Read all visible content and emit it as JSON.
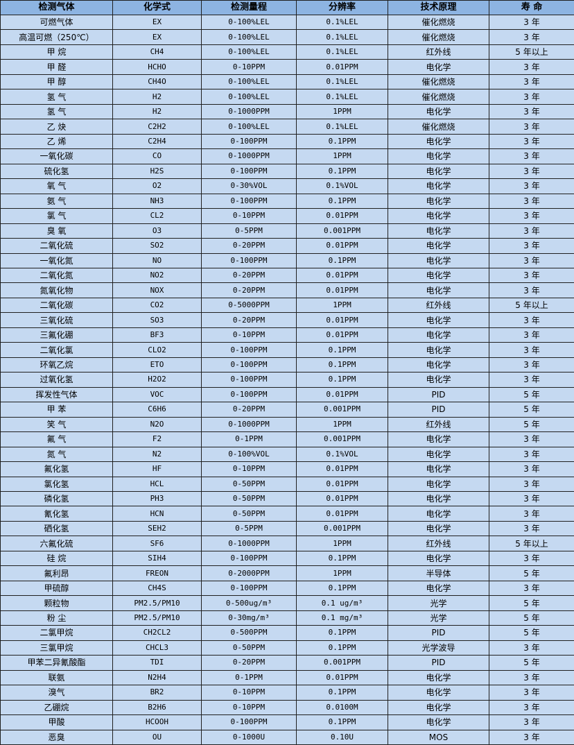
{
  "header": [
    "检测气体",
    "化学式",
    "检测量程",
    "分辨率",
    "技术原理",
    "寿 命"
  ],
  "colors": {
    "header_bg": "#8db4e2",
    "row_bg": "#c5d9f1",
    "border": "#1f1f1f"
  },
  "rows": [
    [
      "可燃气体",
      "EX",
      "0-100%LEL",
      "0.1%LEL",
      "催化燃烧",
      "3 年"
    ],
    [
      "高温可燃（250℃）",
      "EX",
      "0-100%LEL",
      "0.1%LEL",
      "催化燃烧",
      "3 年"
    ],
    [
      "甲 烷",
      "CH4",
      "0-100%LEL",
      "0.1%LEL",
      "红外线",
      "5 年以上"
    ],
    [
      "甲 醛",
      "HCHO",
      "0-10PPM",
      "0.01PPM",
      "电化学",
      "3 年"
    ],
    [
      "甲 醇",
      "CH4O",
      "0-100%LEL",
      "0.1%LEL",
      "催化燃烧",
      "3 年"
    ],
    [
      "氢 气",
      "H2",
      "0-100%LEL",
      "0.1%LEL",
      "催化燃烧",
      "3 年"
    ],
    [
      "氢 气",
      "H2",
      "0-1000PPM",
      "1PPM",
      "电化学",
      "3 年"
    ],
    [
      "乙 炔",
      "C2H2",
      "0-100%LEL",
      "0.1%LEL",
      "催化燃烧",
      "3 年"
    ],
    [
      "乙 烯",
      "C2H4",
      "0-100PPM",
      "0.1PPM",
      "电化学",
      "3 年"
    ],
    [
      "一氧化碳",
      "CO",
      "0-1000PPM",
      "1PPM",
      "电化学",
      "3 年"
    ],
    [
      "硫化氢",
      "H2S",
      "0-100PPM",
      "0.1PPM",
      "电化学",
      "3 年"
    ],
    [
      "氧 气",
      "O2",
      "0-30%VOL",
      "0.1%VOL",
      "电化学",
      "3 年"
    ],
    [
      "氨 气",
      "NH3",
      "0-100PPM",
      "0.1PPM",
      "电化学",
      "3 年"
    ],
    [
      "氯 气",
      "CL2",
      "0-10PPM",
      "0.01PPM",
      "电化学",
      "3 年"
    ],
    [
      "臭 氧",
      "O3",
      "0-5PPM",
      "0.001PPM",
      "电化学",
      "3 年"
    ],
    [
      "二氧化硫",
      "SO2",
      "0-20PPM",
      "0.01PPM",
      "电化学",
      "3 年"
    ],
    [
      "一氧化氮",
      "NO",
      "0-100PPM",
      "0.1PPM",
      "电化学",
      "3 年"
    ],
    [
      "二氧化氮",
      "NO2",
      "0-20PPM",
      "0.01PPM",
      "电化学",
      "3 年"
    ],
    [
      "氮氧化物",
      "NOX",
      "0-20PPM",
      "0.01PPM",
      "电化学",
      "3 年"
    ],
    [
      "二氧化碳",
      "CO2",
      "0-5000PPM",
      "1PPM",
      "红外线",
      "5 年以上"
    ],
    [
      "三氧化硫",
      "SO3",
      "0-20PPM",
      "0.01PPM",
      "电化学",
      "3 年"
    ],
    [
      "三氟化硼",
      "BF3",
      "0-10PPM",
      "0.01PPM",
      "电化学",
      "3 年"
    ],
    [
      "二氧化氯",
      "CLO2",
      "0-100PPM",
      "0.1PPM",
      "电化学",
      "3 年"
    ],
    [
      "环氧乙烷",
      "ETO",
      "0-100PPM",
      "0.1PPM",
      "电化学",
      "3 年"
    ],
    [
      "过氧化氢",
      "H2O2",
      "0-100PPM",
      "0.1PPM",
      "电化学",
      "3 年"
    ],
    [
      "挥发性气体",
      "VOC",
      "0-100PPM",
      "0.01PPM",
      "PID",
      "5 年"
    ],
    [
      "甲 苯",
      "C6H6",
      "0-20PPM",
      "0.001PPM",
      "PID",
      "5 年"
    ],
    [
      "笑 气",
      "N2O",
      "0-1000PPM",
      "1PPM",
      "红外线",
      "5 年"
    ],
    [
      "氟 气",
      "F2",
      "0-1PPM",
      "0.001PPM",
      "电化学",
      "3 年"
    ],
    [
      "氮 气",
      "N2",
      "0-100%VOL",
      "0.1%VOL",
      "电化学",
      "3 年"
    ],
    [
      "氟化氢",
      "HF",
      "0-10PPM",
      "0.01PPM",
      "电化学",
      "3 年"
    ],
    [
      "氯化氢",
      "HCL",
      "0-50PPM",
      "0.01PPM",
      "电化学",
      "3 年"
    ],
    [
      "磷化氢",
      "PH3",
      "0-50PPM",
      "0.01PPM",
      "电化学",
      "3 年"
    ],
    [
      "氰化氢",
      "HCN",
      "0-50PPM",
      "0.01PPM",
      "电化学",
      "3 年"
    ],
    [
      "硒化氢",
      "SEH2",
      "0-5PPM",
      "0.001PPM",
      "电化学",
      "3 年"
    ],
    [
      "六氟化硫",
      "SF6",
      "0-1000PPM",
      "1PPM",
      "红外线",
      "5 年以上"
    ],
    [
      "硅 烷",
      "SIH4",
      "0-100PPM",
      "0.1PPM",
      "电化学",
      "3 年"
    ],
    [
      "氟利昂",
      "FREON",
      "0-2000PPM",
      "1PPM",
      "半导体",
      "5 年"
    ],
    [
      "甲硫醇",
      "CH4S",
      "0-100PPM",
      "0.1PPM",
      "电化学",
      "3 年"
    ],
    [
      "颗粒物",
      "PM2.5/PM10",
      "0-500ug/m³",
      "0.1 ug/m³",
      "光学",
      "5 年"
    ],
    [
      "粉 尘",
      "PM2.5/PM10",
      "0-30mg/m³",
      "0.1 mg/m³",
      "光学",
      "5 年"
    ],
    [
      "二氯甲烷",
      "CH2CL2",
      "0-500PPM",
      "0.1PPM",
      "PID",
      "5 年"
    ],
    [
      "三氯甲烷",
      "CHCL3",
      "0-50PPM",
      "0.1PPM",
      "光学波导",
      "3 年"
    ],
    [
      "甲苯二异氰酸酯",
      "TDI",
      "0-20PPM",
      "0.001PPM",
      "PID",
      "5 年"
    ],
    [
      "联氨",
      "N2H4",
      "0-1PPM",
      "0.01PPM",
      "电化学",
      "3 年"
    ],
    [
      "溴气",
      "BR2",
      "0-10PPM",
      "0.1PPM",
      "电化学",
      "3 年"
    ],
    [
      "乙硼烷",
      "B2H6",
      "0-10PPM",
      "0.0100M",
      "电化学",
      "3 年"
    ],
    [
      "甲酸",
      "HCOOH",
      "0-100PPM",
      "0.1PPM",
      "电化学",
      "3 年"
    ],
    [
      "恶臭",
      "OU",
      "0-1000U",
      "0.10U",
      "MOS",
      "3 年"
    ]
  ]
}
